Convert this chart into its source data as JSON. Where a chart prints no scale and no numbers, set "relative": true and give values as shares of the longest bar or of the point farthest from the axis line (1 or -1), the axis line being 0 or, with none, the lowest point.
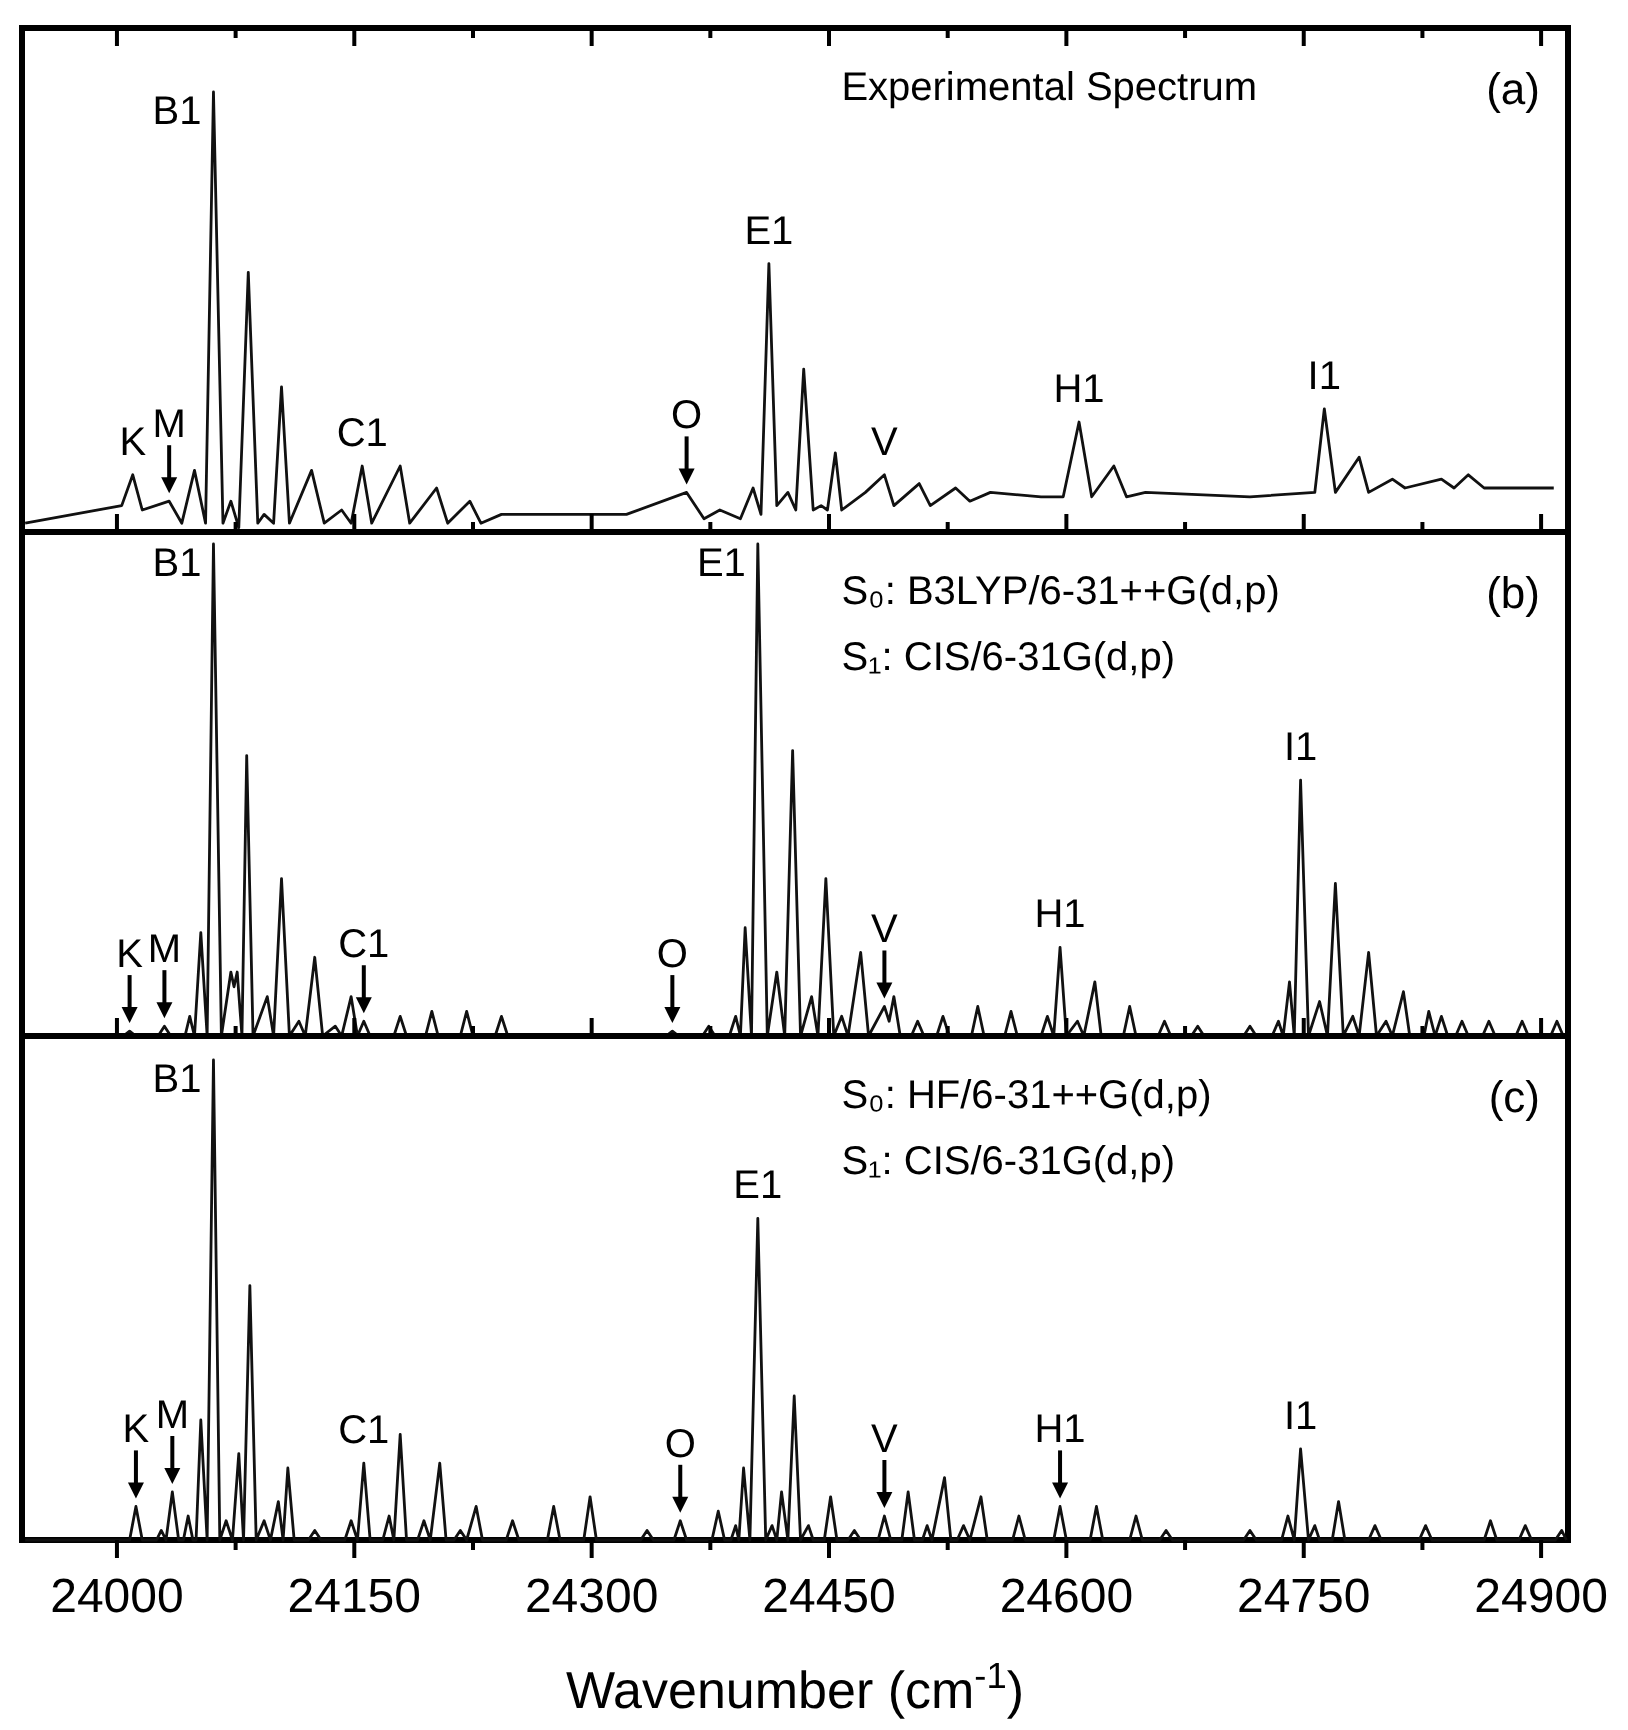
{
  "chart_data": [
    {
      "type": "line",
      "relative": true,
      "title": "(a)",
      "tick_labels": false,
      "xlim": [
        23940,
        24917
      ],
      "xticks": [
        24000,
        {
          "value": 24075,
          "label": null
        },
        24150,
        {
          "value": 24225,
          "label": null
        },
        24300,
        {
          "value": 24375,
          "label": null
        },
        24450,
        {
          "value": 24525,
          "label": null
        },
        24600,
        {
          "value": 24675,
          "label": null
        },
        24750,
        {
          "value": 24825,
          "label": null
        },
        24900
      ],
      "annotations": [
        "Experimental Spectrum",
        {
          "text": "B1",
          "x": 24061,
          "y": 1.0
        },
        {
          "text": "K",
          "x": 24010,
          "y": 0.13
        },
        {
          "text": "M",
          "x": 24033,
          "y": 0.07
        },
        {
          "text": "C1",
          "x": 24155,
          "y": 0.15
        },
        {
          "text": "O",
          "x": 24360,
          "y": 0.09
        },
        {
          "text": "E1",
          "x": 24412,
          "y": 0.61
        },
        {
          "text": "V",
          "x": 24485,
          "y": 0.13
        },
        {
          "text": "H1",
          "x": 24608,
          "y": 0.25
        },
        {
          "text": "I1",
          "x": 24763,
          "y": 0.28
        }
      ],
      "series": [
        {
          "color": "#111111",
          "x": [
            23942,
            24003,
            24010,
            24016,
            24033,
            24041,
            24049,
            24056,
            24061,
            24067,
            24072,
            24077,
            24083,
            24089,
            24093,
            24099,
            24104,
            24109,
            24123,
            24131,
            24142,
            24148,
            24155,
            24161,
            24179,
            24185,
            24202,
            24209,
            24223,
            24230,
            24243,
            24322,
            24360,
            24371,
            24381,
            24394,
            24402,
            24407,
            24412,
            24417,
            24424,
            24429,
            24434,
            24440,
            24445,
            24449,
            24454,
            24458,
            24473,
            24485,
            24491,
            24507,
            24514,
            24530,
            24539,
            24552,
            24584,
            24598,
            24608,
            24616,
            24630,
            24638,
            24650,
            24716,
            24757,
            24763,
            24770,
            24785,
            24791,
            24806,
            24814,
            24837,
            24845,
            24854,
            24864,
            24908
          ],
          "values": [
            0.02,
            0.06,
            0.13,
            0.05,
            0.07,
            0.02,
            0.14,
            0.02,
            1.0,
            0.02,
            0.07,
            0.01,
            0.59,
            0.02,
            0.04,
            0.02,
            0.33,
            0.02,
            0.14,
            0.02,
            0.05,
            0.02,
            0.15,
            0.02,
            0.15,
            0.02,
            0.1,
            0.02,
            0.07,
            0.02,
            0.04,
            0.04,
            0.09,
            0.03,
            0.05,
            0.03,
            0.1,
            0.04,
            0.61,
            0.06,
            0.09,
            0.05,
            0.37,
            0.05,
            0.06,
            0.05,
            0.18,
            0.05,
            0.09,
            0.13,
            0.06,
            0.11,
            0.06,
            0.1,
            0.07,
            0.09,
            0.08,
            0.08,
            0.25,
            0.08,
            0.15,
            0.08,
            0.09,
            0.08,
            0.09,
            0.28,
            0.09,
            0.17,
            0.09,
            0.12,
            0.1,
            0.12,
            0.1,
            0.13,
            0.1,
            0.1
          ]
        }
      ]
    },
    {
      "type": "line",
      "relative": true,
      "title": "(b)",
      "tick_labels": false,
      "xlim": [
        23940,
        24917
      ],
      "xticks": [
        24000,
        {
          "value": 24075,
          "label": null
        },
        24150,
        {
          "value": 24225,
          "label": null
        },
        24300,
        {
          "value": 24375,
          "label": null
        },
        24450,
        {
          "value": 24525,
          "label": null
        },
        24600,
        {
          "value": 24675,
          "label": null
        },
        24750,
        {
          "value": 24825,
          "label": null
        },
        24900
      ],
      "annotations": [
        "S₀: B3LYP/6-31++G(d,p)",
        "S₁: CIS/6-31G(d,p)",
        {
          "text": "B1",
          "x": 24061,
          "y": 1.0
        },
        {
          "text": "K",
          "x": 24008,
          "y": 0.01
        },
        {
          "text": "M",
          "x": 24030,
          "y": 0.02
        },
        {
          "text": "C1",
          "x": 24156,
          "y": 0.03
        },
        {
          "text": "O",
          "x": 24351,
          "y": 0.01
        },
        {
          "text": "E1",
          "x": 24405,
          "y": 1.0
        },
        {
          "text": "V",
          "x": 24485,
          "y": 0.06
        },
        {
          "text": "H1",
          "x": 24596,
          "y": 0.18
        },
        {
          "text": "I1",
          "x": 24748,
          "y": 0.52
        }
      ],
      "series": [
        {
          "color": "#111111",
          "x": [
            23942,
            24004,
            24008,
            24012,
            24026,
            24030,
            24034,
            24043,
            24046,
            24049,
            24053,
            24057,
            24061,
            24066,
            24072,
            24074,
            24076,
            24079,
            24082,
            24086,
            24095,
            24099,
            24104,
            24109,
            24115,
            24119,
            24125,
            24130,
            24138,
            24142,
            24148,
            24152,
            24156,
            24160,
            24175,
            24179,
            24183,
            24195,
            24199,
            24203,
            24217,
            24221,
            24225,
            24239,
            24243,
            24247,
            24347,
            24351,
            24355,
            24370,
            24374,
            24378,
            24387,
            24391,
            24394,
            24397,
            24401,
            24405,
            24411,
            24417,
            24422,
            24427,
            24432,
            24439,
            24443,
            24448,
            24453,
            24458,
            24462,
            24470,
            24475,
            24485,
            24488,
            24491,
            24495,
            24502,
            24506,
            24510,
            24518,
            24522,
            24526,
            24540,
            24544,
            24548,
            24561,
            24565,
            24569,
            24584,
            24588,
            24592,
            24596,
            24600,
            24607,
            24611,
            24618,
            24622,
            24636,
            24640,
            24644,
            24658,
            24662,
            24666,
            24679,
            24683,
            24687,
            24712,
            24716,
            24720,
            24730,
            24734,
            24737,
            24741,
            24744,
            24748,
            24753,
            24760,
            24765,
            24770,
            24775,
            24781,
            24785,
            24791,
            24796,
            24802,
            24806,
            24813,
            24817,
            24826,
            24829,
            24833,
            24837,
            24841,
            24846,
            24850,
            24854,
            24863,
            24867,
            24871,
            24884,
            24888,
            24892,
            24906,
            24910,
            24914
          ],
          "values": [
            0,
            0,
            0.01,
            0,
            0,
            0.02,
            0,
            0,
            0.04,
            0,
            0.21,
            0,
            1.0,
            0,
            0.13,
            0.1,
            0.13,
            0,
            0.57,
            0,
            0.08,
            0,
            0.32,
            0,
            0.03,
            0,
            0.16,
            0,
            0.02,
            0,
            0.08,
            0,
            0.03,
            0,
            0,
            0.04,
            0,
            0,
            0.05,
            0,
            0,
            0.05,
            0,
            0,
            0.04,
            0,
            0,
            0.01,
            0,
            0,
            0.02,
            0,
            0,
            0.04,
            0,
            0.22,
            0,
            1.0,
            0,
            0.13,
            0,
            0.58,
            0,
            0.08,
            0,
            0.32,
            0,
            0.04,
            0,
            0.17,
            0,
            0.06,
            0.03,
            0.08,
            0,
            0,
            0.03,
            0,
            0,
            0.04,
            0,
            0,
            0.06,
            0,
            0,
            0.05,
            0,
            0,
            0.04,
            0,
            0.18,
            0,
            0.03,
            0,
            0.11,
            0,
            0,
            0.06,
            0,
            0,
            0.03,
            0,
            0,
            0.02,
            0,
            0,
            0.02,
            0,
            0,
            0.03,
            0,
            0.11,
            0,
            0.52,
            0,
            0.07,
            0,
            0.31,
            0,
            0.04,
            0,
            0.17,
            0,
            0.03,
            0,
            0.09,
            0,
            0,
            0.05,
            0,
            0.04,
            0,
            0,
            0.03,
            0,
            0,
            0.03,
            0,
            0,
            0.03,
            0,
            0,
            0.03,
            0
          ]
        }
      ]
    },
    {
      "type": "line",
      "relative": true,
      "title": "(c)",
      "xlabel": "Wavenumber (cm$^{-1}$)",
      "xlim": [
        23940,
        24917
      ],
      "xticks": [
        24000,
        {
          "value": 24075,
          "label": null
        },
        24150,
        {
          "value": 24225,
          "label": null
        },
        24300,
        {
          "value": 24375,
          "label": null
        },
        24450,
        {
          "value": 24525,
          "label": null
        },
        24600,
        {
          "value": 24675,
          "label": null
        },
        24750,
        {
          "value": 24825,
          "label": null
        },
        24900
      ],
      "annotations": [
        "S₀: HF/6-31++G(d,p)",
        "S₁: CIS/6-31G(d,p)",
        {
          "text": "B1",
          "x": 24061,
          "y": 1.0
        },
        {
          "text": "K",
          "x": 24012,
          "y": 0.07
        },
        {
          "text": "M",
          "x": 24035,
          "y": 0.1
        },
        {
          "text": "C1",
          "x": 24156,
          "y": 0.16
        },
        {
          "text": "O",
          "x": 24356,
          "y": 0.04
        },
        {
          "text": "E1",
          "x": 24405,
          "y": 0.67
        },
        {
          "text": "V",
          "x": 24485,
          "y": 0.05
        },
        {
          "text": "H1",
          "x": 24596,
          "y": 0.07
        },
        {
          "text": "I1",
          "x": 24748,
          "y": 0.19
        }
      ],
      "series": [
        {
          "color": "#111111",
          "x": [
            23942,
            23961,
            24008,
            24012,
            24016,
            24025,
            24028,
            24031,
            24035,
            24039,
            24042,
            24045,
            24048,
            24050,
            24053,
            24057,
            24061,
            24065,
            24069,
            24073,
            24077,
            24080,
            24084,
            24088,
            24093,
            24097,
            24102,
            24105,
            24108,
            24112,
            24121,
            24125,
            24129,
            24144,
            24148,
            24152,
            24156,
            24160,
            24168,
            24172,
            24175,
            24179,
            24183,
            24190,
            24194,
            24198,
            24204,
            24208,
            24213,
            24217,
            24221,
            24227,
            24231,
            24246,
            24250,
            24254,
            24272,
            24276,
            24280,
            24295,
            24299,
            24303,
            24331,
            24335,
            24339,
            24352,
            24356,
            24360,
            24376,
            24380,
            24384,
            24388,
            24391,
            24393,
            24396,
            24400,
            24405,
            24410,
            24414,
            24417,
            24420,
            24424,
            24428,
            24432,
            24437,
            24440,
            24447,
            24451,
            24455,
            24462,
            24466,
            24470,
            24481,
            24485,
            24489,
            24496,
            24500,
            24504,
            24509,
            24512,
            24515,
            24523,
            24527,
            24531,
            24535,
            24539,
            24546,
            24550,
            24566,
            24570,
            24574,
            24592,
            24596,
            24600,
            24615,
            24619,
            24623,
            24640,
            24644,
            24648,
            24659,
            24663,
            24667,
            24712,
            24716,
            24720,
            24736,
            24740,
            24744,
            24748,
            24753,
            24757,
            24760,
            24768,
            24772,
            24776,
            24791,
            24795,
            24799,
            24823,
            24827,
            24831,
            24864,
            24868,
            24872,
            24886,
            24890,
            24894,
            24909,
            24913,
            24916
          ],
          "values": [
            0,
            0,
            0,
            0.07,
            0,
            0,
            0.02,
            0,
            0.1,
            0,
            0,
            0.05,
            0,
            0,
            0.25,
            0,
            1.0,
            0,
            0.04,
            0,
            0.18,
            0,
            0.53,
            0,
            0.04,
            0,
            0.08,
            0,
            0.15,
            0,
            0,
            0.02,
            0,
            0,
            0.04,
            0,
            0.16,
            0,
            0,
            0.05,
            0,
            0.22,
            0,
            0,
            0.04,
            0,
            0.16,
            0,
            0,
            0.02,
            0,
            0.07,
            0,
            0,
            0.04,
            0,
            0,
            0.07,
            0,
            0,
            0.09,
            0,
            0,
            0.02,
            0,
            0,
            0.04,
            0,
            0,
            0.06,
            0,
            0,
            0.03,
            0,
            0.15,
            0,
            0.67,
            0,
            0.03,
            0,
            0.1,
            0,
            0.3,
            0,
            0.03,
            0,
            0,
            0.09,
            0,
            0,
            0.02,
            0,
            0,
            0.05,
            0,
            0,
            0.1,
            0,
            0,
            0.03,
            0,
            0.13,
            0,
            0,
            0.03,
            0,
            0.09,
            0,
            0,
            0.05,
            0,
            0,
            0.07,
            0,
            0,
            0.07,
            0,
            0,
            0.05,
            0,
            0,
            0.02,
            0,
            0,
            0.02,
            0,
            0,
            0.05,
            0,
            0.19,
            0,
            0.03,
            0,
            0,
            0.08,
            0,
            0,
            0.03,
            0,
            0,
            0.03,
            0,
            0,
            0.04,
            0,
            0,
            0.03,
            0,
            0,
            0.02,
            0
          ]
        }
      ]
    }
  ]
}
